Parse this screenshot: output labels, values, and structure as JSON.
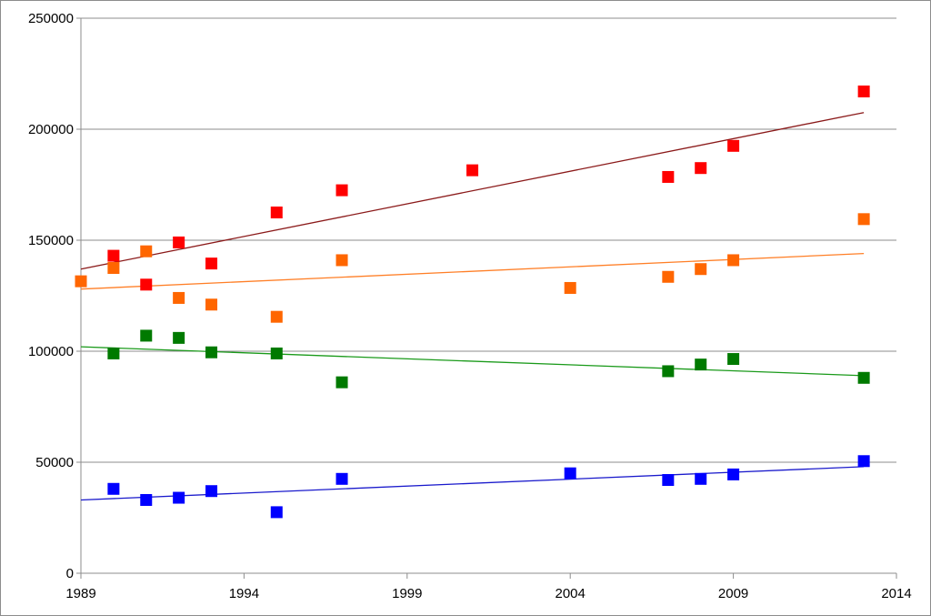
{
  "chart_data": {
    "type": "scatter",
    "title": "",
    "xlabel": "",
    "ylabel": "",
    "xlim": [
      1989,
      2014
    ],
    "ylim": [
      0,
      250000
    ],
    "x_ticks": [
      "1989",
      "1994",
      "1999",
      "2004",
      "2009",
      "2014"
    ],
    "y_ticks": [
      "0",
      "50000",
      "100000",
      "150000",
      "200000",
      "250000"
    ],
    "grid": "horizontal",
    "legend": "none",
    "marker": "square",
    "series": [
      {
        "color": "#ff0000",
        "trend_color": "#8b1a1a",
        "trend": [
          [
            1989,
            137000
          ],
          [
            2013,
            207500
          ]
        ],
        "points": [
          [
            1990,
            143000
          ],
          [
            1991,
            130000
          ],
          [
            1992,
            149000
          ],
          [
            1993,
            139500
          ],
          [
            1995,
            162500
          ],
          [
            1997,
            172500
          ],
          [
            2001,
            181500
          ],
          [
            2007,
            178500
          ],
          [
            2008,
            182500
          ],
          [
            2009,
            192500
          ],
          [
            2013,
            217000
          ]
        ]
      },
      {
        "color": "#ff6600",
        "trend_color": "#ff7f27",
        "trend": [
          [
            1989,
            128000
          ],
          [
            2013,
            144000
          ]
        ],
        "points": [
          [
            1989,
            131500
          ],
          [
            1990,
            137500
          ],
          [
            1991,
            145000
          ],
          [
            1992,
            124000
          ],
          [
            1993,
            121000
          ],
          [
            1995,
            115500
          ],
          [
            1997,
            141000
          ],
          [
            2004,
            128500
          ],
          [
            2007,
            133500
          ],
          [
            2008,
            137000
          ],
          [
            2009,
            141000
          ],
          [
            2013,
            159500
          ]
        ]
      },
      {
        "color": "#007a00",
        "trend_color": "#1a9a1a",
        "trend": [
          [
            1989,
            102000
          ],
          [
            2013,
            89000
          ]
        ],
        "points": [
          [
            1990,
            99000
          ],
          [
            1991,
            107000
          ],
          [
            1992,
            106000
          ],
          [
            1993,
            99500
          ],
          [
            1995,
            99000
          ],
          [
            1997,
            86000
          ],
          [
            2007,
            91000
          ],
          [
            2008,
            94000
          ],
          [
            2009,
            96500
          ],
          [
            2013,
            88000
          ]
        ]
      },
      {
        "color": "#0000ff",
        "trend_color": "#1a1acc",
        "trend": [
          [
            1989,
            33000
          ],
          [
            2013,
            48000
          ]
        ],
        "points": [
          [
            1990,
            38000
          ],
          [
            1991,
            33000
          ],
          [
            1992,
            34000
          ],
          [
            1993,
            37000
          ],
          [
            1995,
            27500
          ],
          [
            1997,
            42500
          ],
          [
            2004,
            45000
          ],
          [
            2007,
            42000
          ],
          [
            2008,
            42500
          ],
          [
            2009,
            44500
          ],
          [
            2013,
            50500
          ]
        ]
      }
    ]
  }
}
